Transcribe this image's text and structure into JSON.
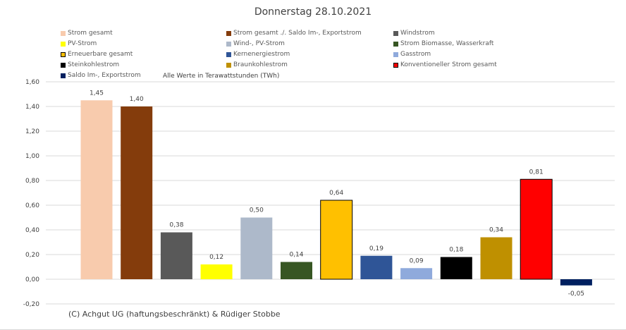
{
  "chart_data": {
    "type": "bar",
    "title": "Donnerstag 28.10.2021",
    "note": "Alle Werte in Terawattstunden (TWh)",
    "credit": "(C) Achgut UG (haftungsbeschränkt) & Rüdiger Stobbe",
    "ylim": [
      -0.2,
      1.6
    ],
    "yticks": [
      "1,60",
      "1,40",
      "1,20",
      "1,00",
      "0,80",
      "0,60",
      "0,40",
      "0,20",
      "0,00",
      "-0,20"
    ],
    "ytick_values": [
      1.6,
      1.4,
      1.2,
      1.0,
      0.8,
      0.6,
      0.4,
      0.2,
      0,
      -0.2
    ],
    "grid": true,
    "legend_position": "top",
    "series": [
      {
        "name": "Strom gesamt",
        "value": 1.45,
        "label": "1,45",
        "color": "#F8CBAD",
        "outline": false
      },
      {
        "name": "Strom gesamt ./. Saldo Im-, Exportstrom",
        "value": 1.4,
        "label": "1,40",
        "color": "#843C0C",
        "outline": false
      },
      {
        "name": "Windstrom",
        "value": 0.38,
        "label": "0,38",
        "color": "#595959",
        "outline": false
      },
      {
        "name": "PV-Strom",
        "value": 0.12,
        "label": "0,12",
        "color": "#FFFF00",
        "outline": false
      },
      {
        "name": "Wind-, PV-Strom",
        "value": 0.5,
        "label": "0,50",
        "color": "#ADB9CA",
        "outline": false
      },
      {
        "name": "Strom Biomasse, Wasserkraft",
        "value": 0.14,
        "label": "0,14",
        "color": "#375623",
        "outline": false
      },
      {
        "name": "Erneuerbare gesamt",
        "value": 0.64,
        "label": "0,64",
        "color": "#FFC000",
        "outline": true
      },
      {
        "name": "Kernenergiestrom",
        "value": 0.19,
        "label": "0,19",
        "color": "#2F5597",
        "outline": false
      },
      {
        "name": "Gasstrom",
        "value": 0.09,
        "label": "0,09",
        "color": "#8FAADC",
        "outline": false
      },
      {
        "name": "Steinkohlestrom",
        "value": 0.18,
        "label": "0,18",
        "color": "#000000",
        "outline": false
      },
      {
        "name": "Braunkohlestrom",
        "value": 0.34,
        "label": "0,34",
        "color": "#BF9000",
        "outline": false
      },
      {
        "name": "Konventioneller Strom gesamt",
        "value": 0.81,
        "label": "0,81",
        "color": "#FF0000",
        "outline": true
      },
      {
        "name": "Saldo Im-, Exportstrom",
        "value": -0.05,
        "label": "-0,05",
        "color": "#002060",
        "outline": false
      }
    ]
  }
}
